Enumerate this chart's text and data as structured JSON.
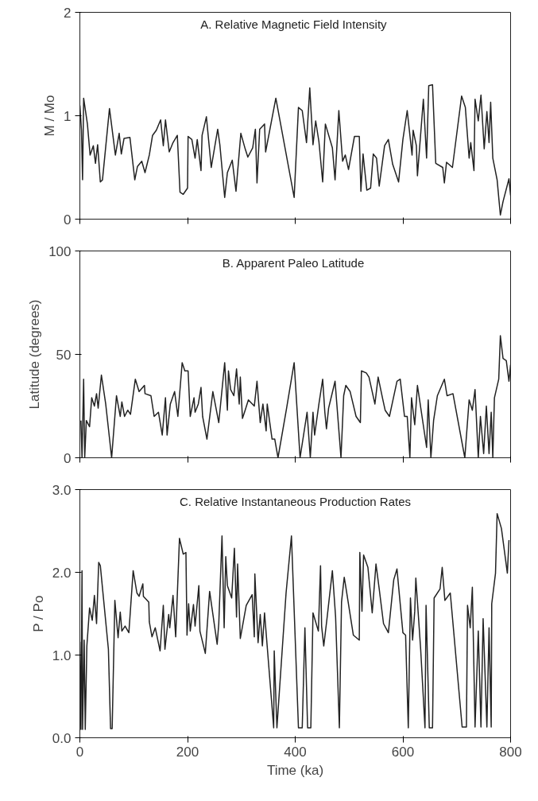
{
  "chart_data": [
    {
      "type": "line",
      "title": "A.  Relative Magnetic Field Intensity",
      "ylabel": "M / Mo",
      "xlim": [
        0,
        800
      ],
      "xticks": [
        0,
        200,
        400,
        600,
        800
      ],
      "ylim": [
        0,
        2
      ],
      "yticks": [
        0,
        1,
        2
      ],
      "tick_labels": "y",
      "grid": false,
      "series": [
        {
          "color": "#222222",
          "x": [
            0,
            3,
            5,
            7,
            14,
            19,
            25,
            29,
            33,
            38,
            42,
            55,
            66,
            73,
            77,
            82,
            93,
            102,
            107,
            115,
            121,
            129,
            135,
            142,
            150,
            155,
            159,
            166,
            173,
            181,
            186,
            192,
            200,
            201,
            208,
            214,
            218,
            225,
            227,
            235,
            244,
            256,
            260,
            269,
            274,
            283,
            290,
            299,
            307,
            312,
            321,
            326,
            329,
            334,
            343,
            345,
            364,
            398,
            406,
            413,
            421,
            427,
            433,
            438,
            444,
            451,
            456,
            469,
            474,
            481,
            488,
            493,
            499,
            510,
            519,
            522,
            526,
            533,
            540,
            545,
            551,
            556,
            566,
            573,
            581,
            592,
            600,
            608,
            617,
            619,
            625,
            627,
            638,
            644,
            648,
            655,
            661,
            674,
            677,
            681,
            692,
            709,
            716,
            723,
            726,
            732,
            734,
            740,
            745,
            751,
            756,
            760,
            763,
            767,
            775,
            781,
            786,
            797,
            800
          ],
          "values": [
            1.1,
            0.86,
            0.38,
            1.17,
            0.92,
            0.62,
            0.71,
            0.54,
            0.72,
            0.36,
            0.38,
            1.07,
            0.62,
            0.83,
            0.63,
            0.78,
            0.79,
            0.38,
            0.51,
            0.56,
            0.45,
            0.62,
            0.81,
            0.86,
            0.96,
            0.71,
            0.96,
            0.65,
            0.74,
            0.81,
            0.26,
            0.24,
            0.3,
            0.8,
            0.77,
            0.59,
            0.77,
            0.47,
            0.81,
            0.99,
            0.5,
            0.87,
            0.72,
            0.21,
            0.45,
            0.57,
            0.27,
            0.83,
            0.68,
            0.6,
            0.69,
            0.87,
            0.35,
            0.87,
            0.92,
            0.65,
            1.17,
            0.21,
            1.08,
            1.05,
            0.74,
            1.27,
            0.72,
            0.95,
            0.75,
            0.36,
            0.92,
            0.69,
            0.38,
            1.05,
            0.56,
            0.62,
            0.48,
            0.8,
            0.8,
            0.27,
            0.63,
            0.28,
            0.3,
            0.63,
            0.59,
            0.32,
            0.71,
            0.77,
            0.53,
            0.36,
            0.77,
            1.05,
            0.62,
            0.86,
            0.71,
            0.42,
            1.16,
            0.59,
            1.29,
            1.3,
            0.54,
            0.5,
            0.35,
            0.55,
            0.5,
            1.19,
            1.08,
            0.59,
            0.74,
            0.47,
            1.16,
            0.95,
            1.2,
            0.68,
            1.04,
            0.74,
            1.13,
            0.59,
            0.38,
            0.04,
            0.17,
            0.39,
            0.23
          ]
        }
      ]
    },
    {
      "type": "line",
      "title": "B.  Apparent Paleo Latitude",
      "ylabel": "Latitude (degrees)",
      "xlim": [
        0,
        800
      ],
      "xticks": [
        0,
        200,
        400,
        600,
        800
      ],
      "ylim": [
        0,
        100
      ],
      "yticks": [
        0,
        50,
        100
      ],
      "tick_labels": "y",
      "grid": false,
      "series": [
        {
          "color": "#222222",
          "x": [
            2,
            4,
            7,
            9,
            12,
            18,
            22,
            27,
            31,
            34,
            40,
            48,
            59,
            68,
            75,
            78,
            83,
            89,
            94,
            103,
            110,
            120,
            121,
            132,
            138,
            146,
            153,
            159,
            162,
            168,
            176,
            182,
            190,
            195,
            201,
            205,
            212,
            214,
            220,
            225,
            228,
            236,
            247,
            258,
            269,
            274,
            276,
            280,
            286,
            291,
            296,
            298,
            302,
            307,
            313,
            324,
            329,
            335,
            340,
            346,
            348,
            357,
            362,
            368,
            384,
            398,
            409,
            422,
            428,
            433,
            436,
            444,
            451,
            455,
            458,
            462,
            474,
            485,
            490,
            494,
            502,
            513,
            521,
            523,
            532,
            537,
            548,
            554,
            562,
            567,
            575,
            589,
            595,
            603,
            608,
            613,
            616,
            622,
            627,
            644,
            647,
            652,
            657,
            664,
            677,
            682,
            693,
            715,
            723,
            729,
            734,
            740,
            744,
            750,
            755,
            760,
            764,
            767,
            770,
            778,
            781,
            786,
            792,
            797,
            800
          ],
          "values": [
            18,
            0,
            38,
            0,
            18,
            15,
            29,
            25,
            31,
            24,
            40,
            26,
            0,
            30,
            20,
            27,
            20,
            23,
            21,
            38,
            32,
            35,
            31,
            30,
            20,
            22,
            11,
            29,
            11,
            26,
            32,
            20,
            46,
            42,
            42,
            20,
            29,
            22,
            26,
            34,
            20,
            9,
            32,
            17,
            46,
            23,
            42,
            33,
            30,
            43,
            26,
            39,
            19,
            23,
            28,
            25,
            37,
            17,
            26,
            13,
            26,
            9,
            9,
            0,
            24,
            46,
            0,
            22,
            0,
            22,
            11,
            26,
            38,
            22,
            14,
            24,
            37,
            0,
            30,
            35,
            32,
            20,
            17,
            42,
            41,
            39,
            26,
            39,
            29,
            23,
            20,
            37,
            38,
            20,
            20,
            0,
            29,
            16,
            35,
            5,
            28,
            0,
            18,
            30,
            38,
            30,
            31,
            0,
            28,
            23,
            33,
            0,
            20,
            2,
            25,
            2,
            22,
            0,
            29,
            38,
            59,
            48,
            47,
            37,
            45
          ]
        }
      ]
    },
    {
      "type": "line",
      "title": "C. Relative Instantaneous Production Rates",
      "ylabel": "P / Po",
      "xlabel": "Time (ka)",
      "xlim": [
        0,
        800
      ],
      "xticks": [
        0,
        200,
        400,
        600,
        800
      ],
      "ylim": [
        0,
        3
      ],
      "yticks": [
        {
          "value": 0,
          "label": "0.0"
        },
        {
          "value": 1,
          "label": "1.0"
        },
        {
          "value": 2,
          "label": "2.0"
        },
        {
          "value": 3,
          "label": "3.0"
        }
      ],
      "grid": false,
      "series": [
        {
          "color": "#222222",
          "x": [
            0,
            2,
            4,
            5,
            8,
            10,
            13,
            18,
            23,
            27,
            31,
            35,
            38,
            53,
            57,
            60,
            65,
            71,
            75,
            78,
            84,
            91,
            99,
            106,
            110,
            117,
            118,
            128,
            129,
            134,
            140,
            149,
            155,
            158,
            165,
            167,
            173,
            178,
            185,
            192,
            197,
            199,
            202,
            205,
            211,
            214,
            221,
            223,
            233,
            241,
            255,
            258,
            264,
            268,
            271,
            274,
            282,
            287,
            291,
            293,
            298,
            309,
            320,
            324,
            325,
            331,
            335,
            339,
            343,
            360,
            361,
            366,
            383,
            393,
            406,
            413,
            418,
            423,
            429,
            433,
            443,
            447,
            449,
            453,
            459,
            469,
            475,
            482,
            486,
            491,
            494,
            508,
            519,
            520,
            524,
            527,
            535,
            543,
            550,
            556,
            564,
            573,
            583,
            589,
            600,
            605,
            610,
            614,
            618,
            622,
            624,
            633,
            641,
            643,
            649,
            655,
            658,
            669,
            673,
            678,
            688,
            710,
            718,
            720,
            725,
            729,
            734,
            740,
            745,
            749,
            756,
            760,
            764,
            765,
            772,
            775,
            783,
            794,
            797
          ],
          "values": [
            1.16,
            0.1,
            2.02,
            0.1,
            1.18,
            0.1,
            1.11,
            1.57,
            1.42,
            1.72,
            1.38,
            2.12,
            2.08,
            1.07,
            0.11,
            0.11,
            1.66,
            1.21,
            1.52,
            1.29,
            1.35,
            1.27,
            2.02,
            1.75,
            1.71,
            1.86,
            1.71,
            1.64,
            1.4,
            1.22,
            1.33,
            1.05,
            1.6,
            1.07,
            1.49,
            1.33,
            1.72,
            1.22,
            2.41,
            2.22,
            2.24,
            1.24,
            1.62,
            1.29,
            1.61,
            1.35,
            1.84,
            1.29,
            1.02,
            1.77,
            1.13,
            1.38,
            2.44,
            1.33,
            2.19,
            1.84,
            1.69,
            2.29,
            1.46,
            2.1,
            1.2,
            1.6,
            1.73,
            1.22,
            1.98,
            1.15,
            1.49,
            1.11,
            1.51,
            0.12,
            1.05,
            0.12,
            1.75,
            2.44,
            0.12,
            0.12,
            1.33,
            0.12,
            0.12,
            1.51,
            1.29,
            2.08,
            1.35,
            1.11,
            1.44,
            2.02,
            1.46,
            0.12,
            1.64,
            1.94,
            1.82,
            1.24,
            1.18,
            2.24,
            1.53,
            2.21,
            2.06,
            1.51,
            2.1,
            1.8,
            1.38,
            1.27,
            1.91,
            2.04,
            1.27,
            1.24,
            0.12,
            1.69,
            1.18,
            1.53,
            1.93,
            1.07,
            0.12,
            1.6,
            0.12,
            0.12,
            1.69,
            1.8,
            2.06,
            1.66,
            1.75,
            0.13,
            0.13,
            1.6,
            1.33,
            1.82,
            0.13,
            1.29,
            0.13,
            1.44,
            0.13,
            1.33,
            0.13,
            1.62,
            1.99,
            2.71,
            2.53,
            1.99,
            2.39
          ]
        }
      ]
    }
  ]
}
